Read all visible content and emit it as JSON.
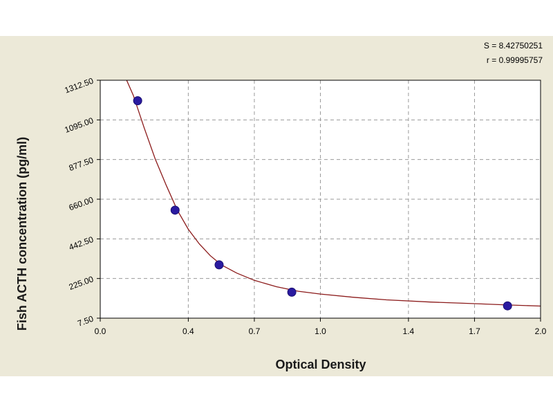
{
  "chart_data": {
    "type": "scatter",
    "title": "",
    "xlabel": "Optical Density",
    "ylabel": "Fish ACTH concentration (pg/ml)",
    "xlim": [
      0.0,
      2.0
    ],
    "ylim": [
      7.5,
      1312.5
    ],
    "x_ticks": [
      "0.0",
      "0.4",
      "0.7",
      "1.0",
      "1.4",
      "1.7",
      "2.0"
    ],
    "y_ticks": [
      "7.50",
      "225.00",
      "442.50",
      "660.00",
      "877.50",
      "1095.00",
      "1312.50"
    ],
    "grid": true,
    "stats": {
      "s": "S = 8.42750251",
      "r": "r = 0.99995757"
    },
    "series": [
      {
        "points": [
          {
            "x": 0.17,
            "y": 1200
          },
          {
            "x": 0.34,
            "y": 600
          },
          {
            "x": 0.54,
            "y": 300
          },
          {
            "x": 0.87,
            "y": 150
          },
          {
            "x": 1.85,
            "y": 75
          }
        ],
        "fit_curve": [
          {
            "x": 0.12,
            "y": 1312.5
          },
          {
            "x": 0.15,
            "y": 1230
          },
          {
            "x": 0.2,
            "y": 1050
          },
          {
            "x": 0.25,
            "y": 880
          },
          {
            "x": 0.3,
            "y": 735
          },
          {
            "x": 0.35,
            "y": 600
          },
          {
            "x": 0.4,
            "y": 495
          },
          {
            "x": 0.45,
            "y": 415
          },
          {
            "x": 0.5,
            "y": 350
          },
          {
            "x": 0.55,
            "y": 300
          },
          {
            "x": 0.62,
            "y": 255
          },
          {
            "x": 0.7,
            "y": 215
          },
          {
            "x": 0.8,
            "y": 180
          },
          {
            "x": 0.9,
            "y": 155
          },
          {
            "x": 1.0,
            "y": 140
          },
          {
            "x": 1.15,
            "y": 122
          },
          {
            "x": 1.3,
            "y": 108
          },
          {
            "x": 1.5,
            "y": 96
          },
          {
            "x": 1.7,
            "y": 87
          },
          {
            "x": 1.85,
            "y": 80
          },
          {
            "x": 2.0,
            "y": 74
          }
        ]
      }
    ],
    "colors": {
      "panel_bg": "#ece9d8",
      "plot_bg": "#ffffff",
      "grid": "#9a9a9a",
      "curve": "#8b1a1a",
      "point": "#2a1aa0"
    }
  }
}
